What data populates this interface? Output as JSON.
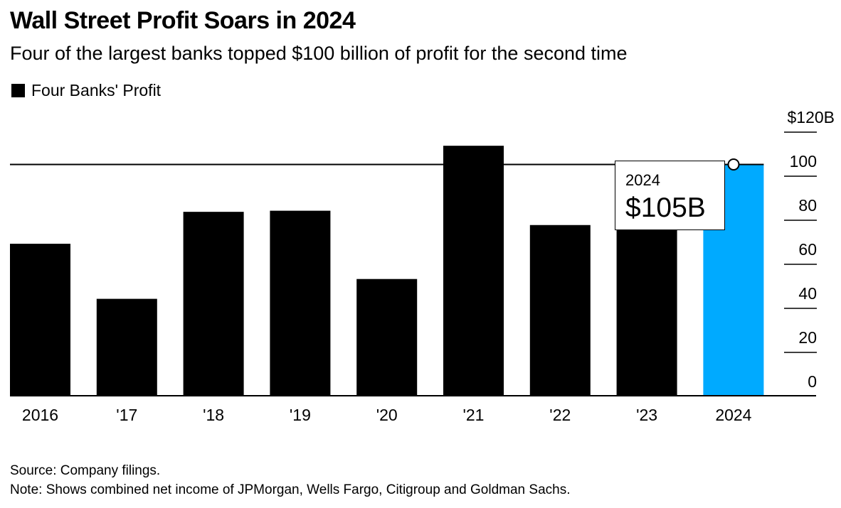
{
  "header": {
    "title": "Wall Street Profit Soars in 2024",
    "subtitle": "Four of the largest banks topped $100 billion of profit for the second time",
    "legend_label": "Four Banks' Profit"
  },
  "tooltip": {
    "year": "2024",
    "value": "$105B"
  },
  "footer": {
    "source": "Source: Company filings.",
    "note": "Note: Shows combined net income of JPMorgan, Wells Fargo, Citigroup and Goldman Sachs."
  },
  "colors": {
    "bar": "#000000",
    "highlight": "#00AAFF",
    "axis": "#000000"
  },
  "chart_data": {
    "type": "bar",
    "title": "Wall Street Profit Soars in 2024",
    "subtitle": "Four of the largest banks topped $100 billion of profit for the second time",
    "xlabel": "",
    "ylabel": "",
    "categories": [
      "2016",
      "'17",
      "'18",
      "'19",
      "'20",
      "'21",
      "'22",
      "'23",
      "2024"
    ],
    "series": [
      {
        "name": "Four Banks' Profit",
        "values": [
          69,
          44,
          83.5,
          84,
          53,
          113.5,
          77.5,
          81,
          105
        ]
      }
    ],
    "highlight_index": 8,
    "reference_line": {
      "value": 105
    },
    "ylim": [
      0,
      120
    ],
    "yticks": [
      0,
      20,
      40,
      60,
      80,
      100,
      120
    ],
    "ytick_labels": [
      "0",
      "20",
      "40",
      "60",
      "80",
      "100",
      "$120B"
    ],
    "y_axis_position": "right",
    "grid": false,
    "legend": "top-left",
    "annotation": {
      "category": "2024",
      "text_year": "2024",
      "text_value": "$105B"
    }
  }
}
